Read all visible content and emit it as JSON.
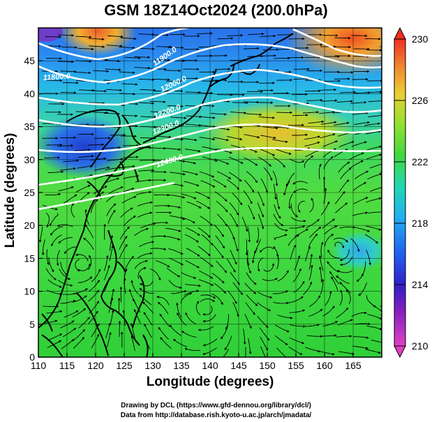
{
  "title": "GSM 18Z14Oct2024 (200.0hPa)",
  "credits": {
    "line1": "Drawing by DCL (https://www.gfd-dennou.org/library/dcl/)",
    "line2": "Data from http://database.rish.kyoto-u.ac.jp/arch/jmadata/"
  },
  "map_data": {
    "xlabel": "Longitude (degrees)",
    "ylabel": "Latitude  (degrees)",
    "xlim": [
      110,
      170
    ],
    "ylim": [
      0,
      50
    ],
    "xticks": [
      "110",
      "115",
      "120",
      "125",
      "130",
      "135",
      "140",
      "145",
      "150",
      "155",
      "160",
      "165"
    ],
    "yticks": [
      "0",
      "5",
      "10",
      "15",
      "20",
      "25",
      "30",
      "35",
      "40",
      "45"
    ],
    "contour_labels": [
      "11800.0",
      "11900.0",
      "12000.0",
      "12200.0",
      "12300.0",
      "12400.0"
    ],
    "colorbar": {
      "ticks": [
        "230",
        "226",
        "222",
        "218",
        "214",
        "210"
      ],
      "min": 210,
      "max": 230,
      "colors": [
        "#e040c0",
        "#4020c8",
        "#2060f0",
        "#20c0f0",
        "#30d880",
        "#60e030",
        "#c0e030",
        "#f0b030",
        "#f04020"
      ]
    }
  }
}
